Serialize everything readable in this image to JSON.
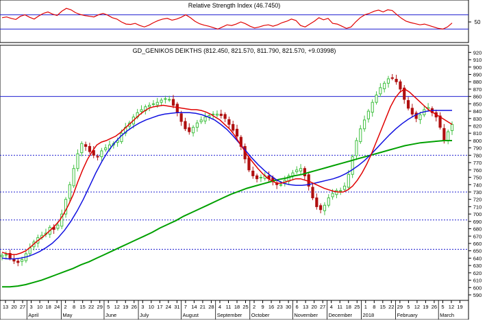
{
  "chart_data": [
    {
      "type": "line",
      "title": "Relative Strength Index (46.7450)",
      "ylim": [
        0,
        100
      ],
      "y_ticks": [
        "50"
      ],
      "reference_levels": [
        70,
        30
      ],
      "grid": false,
      "series": [
        {
          "color": "#e00000",
          "values": [
            62,
            64,
            60,
            57,
            66,
            70,
            63,
            58,
            67,
            74,
            78,
            72,
            68,
            80,
            88,
            84,
            76,
            71,
            68,
            66,
            64,
            70,
            74,
            69,
            62,
            58,
            50,
            44,
            43,
            46,
            40,
            36,
            41,
            48,
            54,
            58,
            60,
            55,
            58,
            63,
            70,
            62,
            52,
            45,
            41,
            38,
            34,
            30,
            36,
            42,
            40,
            44,
            50,
            45,
            38,
            33,
            36,
            40,
            42,
            38,
            42,
            48,
            52,
            58,
            54,
            40,
            36,
            44,
            52,
            62,
            56,
            60,
            46,
            44,
            38,
            32,
            36,
            50,
            62,
            70,
            74,
            80,
            83,
            78,
            84,
            82,
            70,
            60,
            52,
            48,
            45,
            42,
            44,
            40,
            36,
            32,
            30,
            36,
            47
          ]
        }
      ],
      "colors": {
        "rsi": "#e00000",
        "levels": "#1f1fd0"
      }
    },
    {
      "type": "candlestick",
      "title": "GD_GENIKOS DEIKTHS (812.450, 821.570, 811.790, 821.570, +9.03998)",
      "ylim": [
        590,
        925
      ],
      "y_ticks": [
        "920",
        "910",
        "900",
        "890",
        "880",
        "870",
        "860",
        "850",
        "840",
        "830",
        "820",
        "810",
        "800",
        "790",
        "780",
        "770",
        "760",
        "750",
        "740",
        "730",
        "720",
        "710",
        "700",
        "690",
        "680",
        "670",
        "660",
        "650",
        "640",
        "630",
        "620",
        "610",
        "600",
        "590"
      ],
      "horizontal_levels": [
        860,
        780,
        730,
        692,
        652
      ],
      "x_ticks": [
        "13",
        "20",
        "27",
        "3",
        "10",
        "18",
        "24",
        "2",
        "8",
        "15",
        "22",
        "29",
        "5",
        "12",
        "19",
        "26",
        "3",
        "10",
        "17",
        "24",
        "31",
        "7",
        "14",
        "21",
        "28",
        "4",
        "11",
        "18",
        "25",
        "2",
        "9",
        "16",
        "23",
        "30",
        "6",
        "13",
        "20",
        "27",
        "4",
        "11",
        "18",
        "25",
        "1",
        "8",
        "15",
        "22",
        "29",
        "5",
        "12",
        "19",
        "26",
        "5",
        "12",
        "19"
      ],
      "month_labels": [
        "April",
        "May",
        "June",
        "July",
        "August",
        "September",
        "October",
        "November",
        "December",
        "2018",
        "February",
        "March"
      ],
      "close": [
        644,
        645,
        640,
        636,
        634,
        638,
        646,
        654,
        662,
        668,
        671,
        674,
        682,
        679,
        685,
        700,
        720,
        740,
        762,
        782,
        796,
        792,
        785,
        780,
        778,
        786,
        790,
        794,
        796,
        800,
        810,
        818,
        824,
        832,
        838,
        842,
        846,
        848,
        850,
        852,
        855,
        857,
        856,
        848,
        838,
        826,
        816,
        812,
        818,
        824,
        828,
        832,
        834,
        836,
        836,
        834,
        830,
        822,
        814,
        806,
        792,
        775,
        760,
        752,
        748,
        750,
        752,
        748,
        744,
        740,
        740,
        746,
        752,
        756,
        760,
        762,
        752,
        738,
        722,
        710,
        706,
        712,
        722,
        728,
        732,
        732,
        738,
        754,
        778,
        800,
        816,
        828,
        840,
        852,
        862,
        872,
        878,
        884,
        885,
        880,
        870,
        856,
        844,
        836,
        830,
        835,
        842,
        845,
        838,
        832,
        818,
        800,
        812,
        822
      ],
      "ma_short": [
        648,
        646,
        645,
        645,
        647,
        650,
        655,
        661,
        666,
        671,
        677,
        683,
        690,
        700,
        712,
        726,
        744,
        760,
        774,
        785,
        794,
        798,
        800,
        803,
        806,
        811,
        817,
        823,
        829,
        835,
        840,
        844,
        846,
        847,
        848,
        847,
        846,
        845,
        844,
        843,
        842,
        842,
        841,
        839,
        836,
        832,
        828,
        822,
        816,
        808,
        798,
        788,
        778,
        770,
        762,
        755,
        749,
        745,
        742,
        742,
        744,
        746,
        748,
        748,
        746,
        744,
        741,
        738,
        735,
        733,
        731,
        730,
        730,
        733,
        738,
        746,
        756,
        768,
        782,
        798,
        814,
        830,
        846,
        858,
        866,
        870,
        866,
        860,
        854,
        848,
        842,
        838,
        834,
        830,
        826,
        822
      ],
      "ma_medium": [
        640,
        639,
        639,
        640,
        642,
        645,
        649,
        654,
        660,
        668,
        678,
        690,
        704,
        720,
        738,
        756,
        772,
        786,
        797,
        806,
        813,
        819,
        824,
        828,
        831,
        834,
        836,
        837,
        838,
        838,
        838,
        837,
        835,
        832,
        828,
        822,
        815,
        806,
        796,
        786,
        776,
        767,
        759,
        752,
        746,
        742,
        740,
        739,
        739,
        740,
        742,
        744,
        746,
        748,
        751,
        755,
        760,
        766,
        773,
        781,
        790,
        799,
        808,
        816,
        823,
        829,
        834,
        838,
        840,
        841,
        841,
        841,
        841
      ],
      "ma_long": [
        601,
        601,
        602,
        604,
        607,
        610,
        614,
        618,
        622,
        626,
        631,
        635,
        640,
        645,
        650,
        655,
        660,
        665,
        670,
        675,
        681,
        686,
        691,
        697,
        702,
        707,
        712,
        717,
        722,
        727,
        731,
        735,
        738,
        741,
        744,
        747,
        749,
        752,
        754,
        757,
        760,
        763,
        766,
        769,
        772,
        775,
        778,
        781,
        784,
        787,
        790,
        793,
        795,
        797,
        798,
        799,
        800,
        800
      ],
      "colors": {
        "ma_short": "#e00000",
        "ma_medium": "#1010e0",
        "ma_long": "#00a000",
        "bull": "#40c040",
        "bear": "#b01010",
        "levels": "#1f1fd0"
      }
    }
  ]
}
